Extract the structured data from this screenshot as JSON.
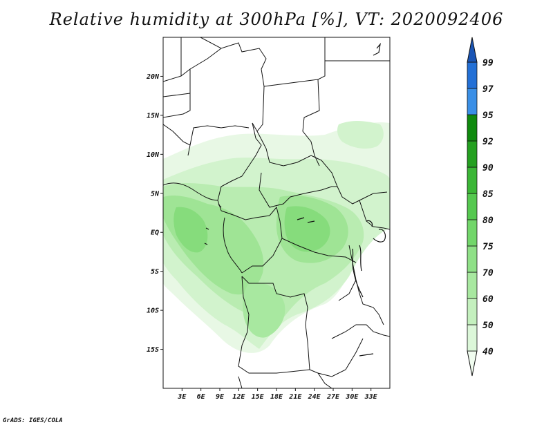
{
  "title": "Relative humidity at 300hPa [%], VT: 2020092406",
  "credit": "GrADS: IGES/COLA",
  "map": {
    "lon_range": [
      0,
      36
    ],
    "lat_range": [
      -20,
      25
    ],
    "lat_ticks": [
      {
        "value": 20,
        "label": "20N"
      },
      {
        "value": 15,
        "label": "15N"
      },
      {
        "value": 10,
        "label": "10N"
      },
      {
        "value": 5,
        "label": "5N"
      },
      {
        "value": 0,
        "label": "EQ"
      },
      {
        "value": -5,
        "label": "5S"
      },
      {
        "value": -10,
        "label": "10S"
      },
      {
        "value": -15,
        "label": "15S"
      }
    ],
    "lon_ticks": [
      {
        "value": 3,
        "label": "3E"
      },
      {
        "value": 6,
        "label": "6E"
      },
      {
        "value": 9,
        "label": "9E"
      },
      {
        "value": 12,
        "label": "12E"
      },
      {
        "value": 15,
        "label": "15E"
      },
      {
        "value": 18,
        "label": "18E"
      },
      {
        "value": 21,
        "label": "21E"
      },
      {
        "value": 24,
        "label": "24E"
      },
      {
        "value": 27,
        "label": "27E"
      },
      {
        "value": 30,
        "label": "30E"
      },
      {
        "value": 33,
        "label": "33E"
      }
    ]
  },
  "colorbar": {
    "levels": [
      "40",
      "50",
      "60",
      "70",
      "75",
      "80",
      "85",
      "90",
      "92",
      "95",
      "97",
      "99"
    ],
    "colors": [
      "#f0fcef",
      "#dcf7d9",
      "#c4f0be",
      "#a8e8a0",
      "#8fe087",
      "#72d66a",
      "#55c84f",
      "#3bb636",
      "#24a020",
      "#0f8a0e",
      "#3a8fe6",
      "#2370d6",
      "#1a55b5"
    ]
  }
}
